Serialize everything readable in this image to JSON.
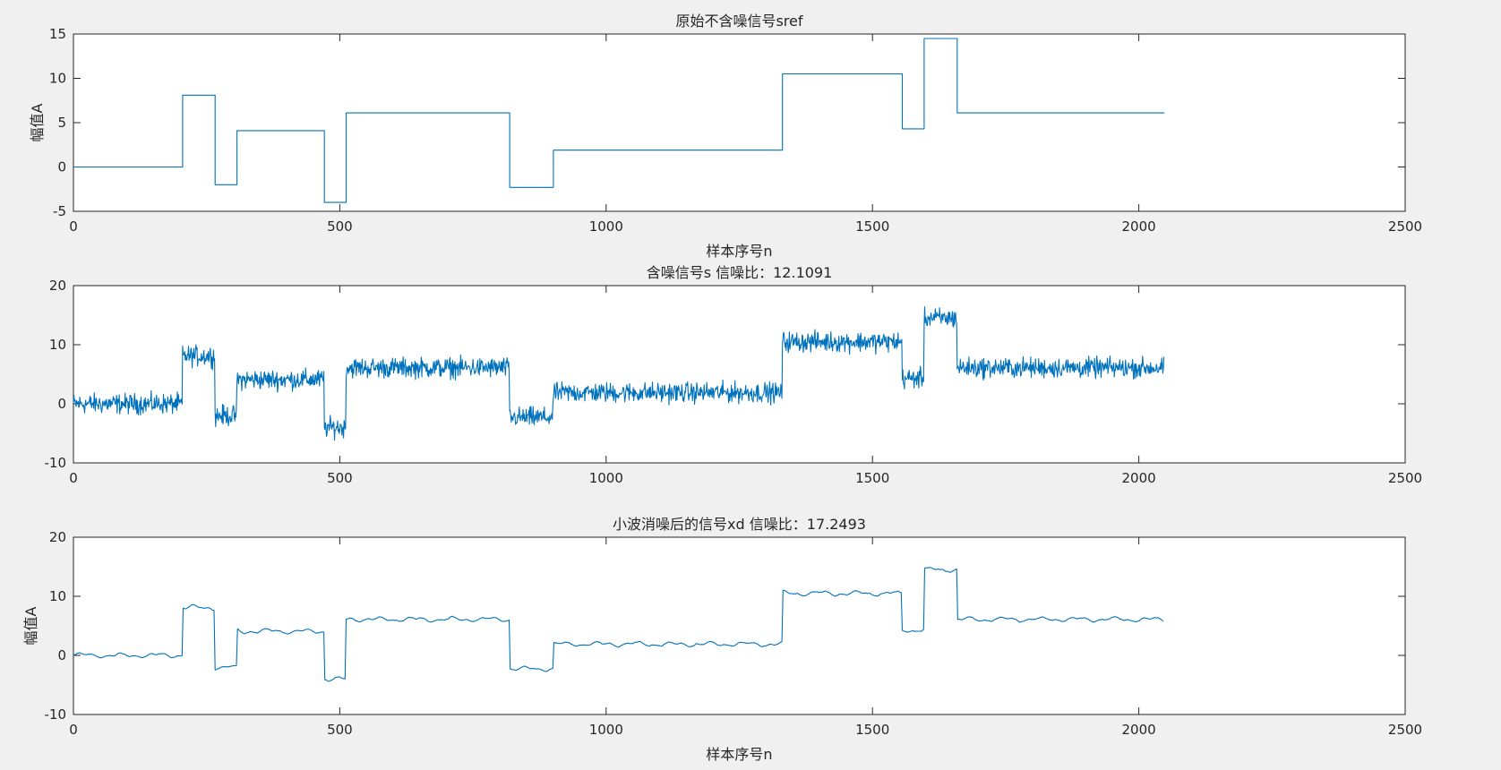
{
  "figure": {
    "background": "#f0f0f0",
    "axes_background": "#ffffff",
    "axes_color": "#262626",
    "line_color": "#0072bd"
  },
  "chart_data": [
    {
      "type": "line",
      "title": "原始不含噪信号sref",
      "xlabel": "样本序号n",
      "ylabel": "幅值A",
      "xlim": [
        0,
        2500
      ],
      "ylim": [
        -5,
        15
      ],
      "xticks": [
        "0",
        "500",
        "1000",
        "1500",
        "2000",
        "2500"
      ],
      "yticks": [
        "-5",
        "0",
        "5",
        "10",
        "15"
      ],
      "grid": false,
      "legend": null,
      "series": [
        {
          "style": "step",
          "x": [
            0,
            205,
            205,
            266,
            266,
            307,
            307,
            471,
            471,
            512,
            512,
            819,
            819,
            901,
            901,
            1331,
            1331,
            1556,
            1556,
            1597,
            1597,
            1659,
            1659,
            2048
          ],
          "y": [
            0,
            0,
            8.1,
            8.1,
            -2,
            -2,
            4.1,
            4.1,
            -4,
            -4,
            6.1,
            6.1,
            -2.3,
            -2.3,
            1.9,
            1.9,
            10.5,
            10.5,
            4.3,
            4.3,
            14.5,
            14.5,
            6.1,
            6.1
          ]
        }
      ]
    },
    {
      "type": "line",
      "title": "含噪信号s 信噪比：12.1091",
      "xlabel": "",
      "ylabel": "",
      "xlim": [
        0,
        2500
      ],
      "ylim": [
        -10,
        20
      ],
      "xticks": [
        "0",
        "500",
        "1000",
        "1500",
        "2000",
        "2500"
      ],
      "yticks": [
        "-10",
        "0",
        "10",
        "20"
      ],
      "grid": false,
      "legend": null,
      "series": [
        {
          "style": "noisy",
          "noise_amplitude": 1.6,
          "segments": [
            {
              "x0": 0,
              "x1": 205,
              "level": 0
            },
            {
              "x0": 205,
              "x1": 266,
              "level": 8.1
            },
            {
              "x0": 266,
              "x1": 307,
              "level": -2
            },
            {
              "x0": 307,
              "x1": 471,
              "level": 4.1
            },
            {
              "x0": 471,
              "x1": 512,
              "level": -4
            },
            {
              "x0": 512,
              "x1": 819,
              "level": 6.1
            },
            {
              "x0": 819,
              "x1": 901,
              "level": -2.3
            },
            {
              "x0": 901,
              "x1": 1331,
              "level": 1.9
            },
            {
              "x0": 1331,
              "x1": 1556,
              "level": 10.5
            },
            {
              "x0": 1556,
              "x1": 1597,
              "level": 4.3
            },
            {
              "x0": 1597,
              "x1": 1659,
              "level": 14.5
            },
            {
              "x0": 1659,
              "x1": 2048,
              "level": 6.1
            }
          ]
        }
      ]
    },
    {
      "type": "line",
      "title": "小波消噪后的信号xd 信噪比：17.2493",
      "xlabel": "样本序号n",
      "ylabel": "幅值A",
      "xlim": [
        0,
        2500
      ],
      "ylim": [
        -10,
        20
      ],
      "xticks": [
        "0",
        "500",
        "1000",
        "1500",
        "2000",
        "2500"
      ],
      "yticks": [
        "-10",
        "0",
        "10",
        "20"
      ],
      "grid": false,
      "legend": null,
      "series": [
        {
          "style": "smooth",
          "ripple_amplitude": 0.5,
          "segments": [
            {
              "x0": 0,
              "x1": 205,
              "level": 0
            },
            {
              "x0": 205,
              "x1": 266,
              "level": 8.1
            },
            {
              "x0": 266,
              "x1": 307,
              "level": -2
            },
            {
              "x0": 307,
              "x1": 471,
              "level": 4.1
            },
            {
              "x0": 471,
              "x1": 512,
              "level": -4
            },
            {
              "x0": 512,
              "x1": 819,
              "level": 6.1
            },
            {
              "x0": 819,
              "x1": 901,
              "level": -2.3
            },
            {
              "x0": 901,
              "x1": 1331,
              "level": 1.9
            },
            {
              "x0": 1331,
              "x1": 1556,
              "level": 10.5
            },
            {
              "x0": 1556,
              "x1": 1597,
              "level": 4.3
            },
            {
              "x0": 1597,
              "x1": 1659,
              "level": 14.5
            },
            {
              "x0": 1659,
              "x1": 2048,
              "level": 6.1
            }
          ]
        }
      ]
    }
  ]
}
